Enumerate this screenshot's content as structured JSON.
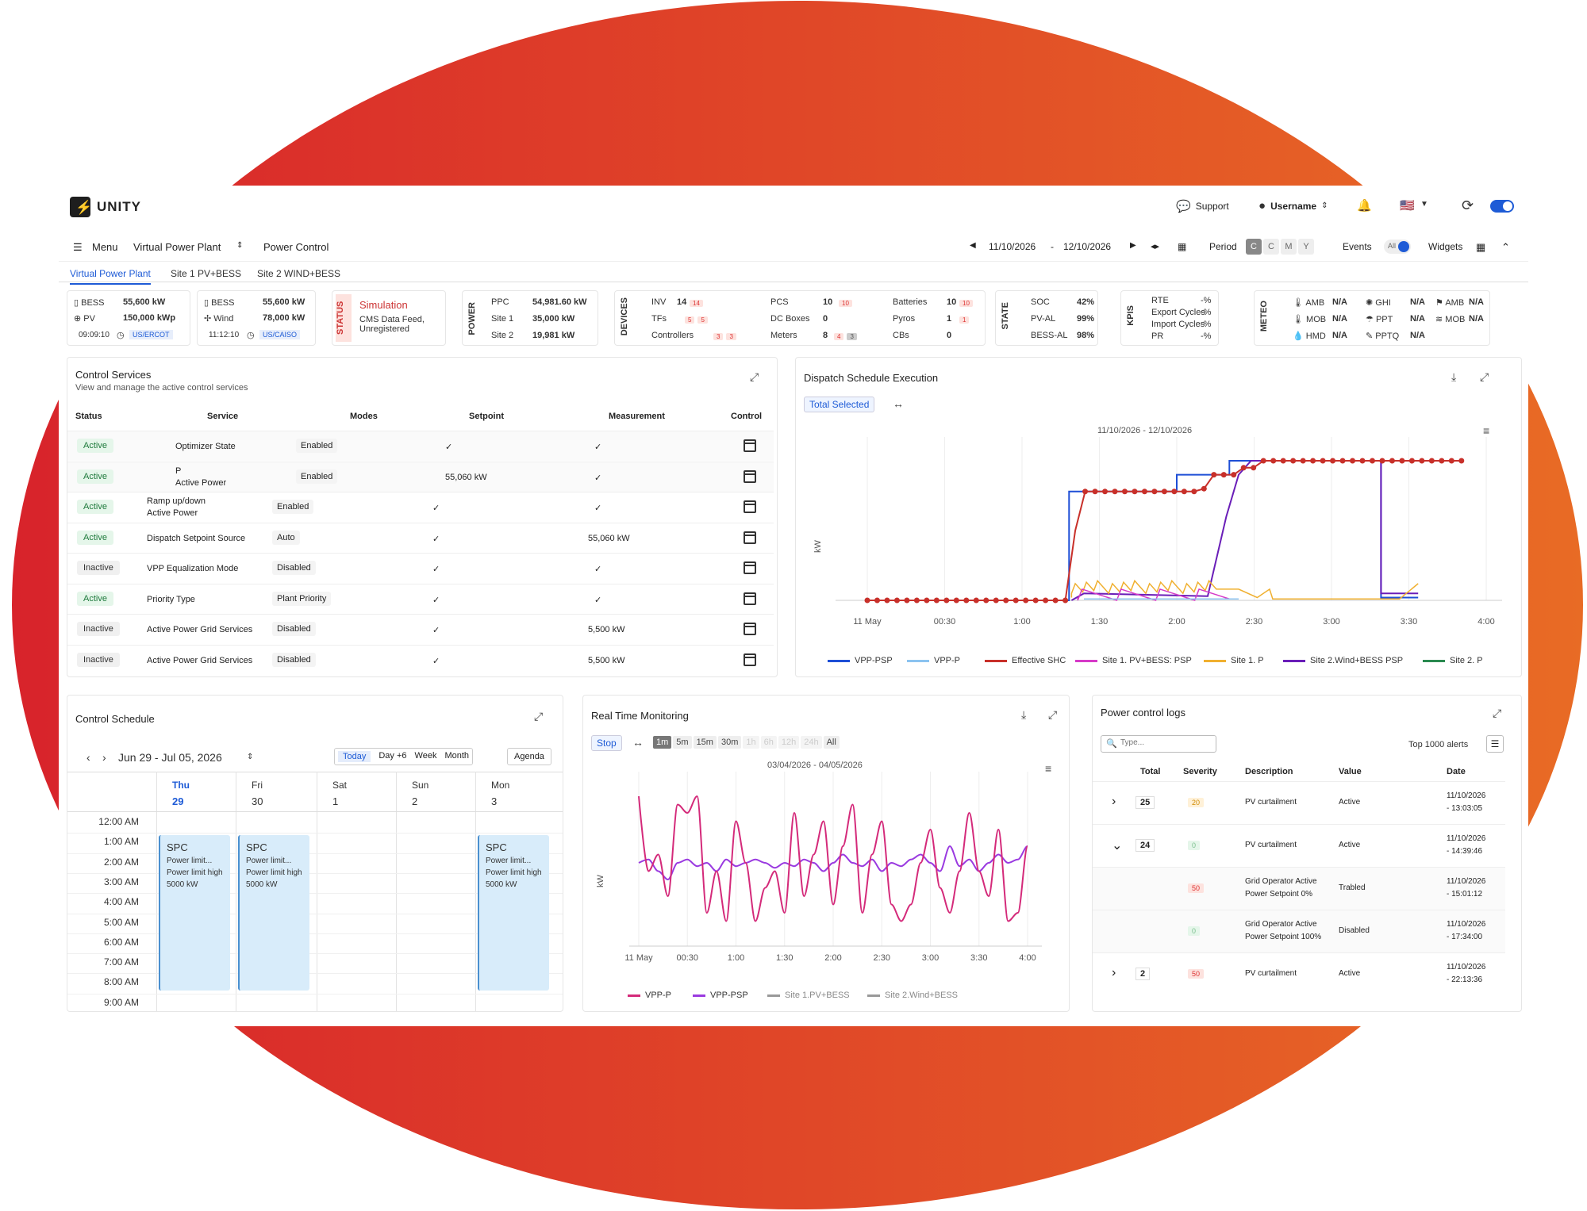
{
  "header": {
    "logo_text": "UNITY",
    "support": "Support",
    "username": "Username"
  },
  "nav": {
    "menu": "Menu",
    "plant": "Virtual Power Plant",
    "page": "Power Control",
    "date_from": "11/10/2026",
    "date_sep": "-",
    "date_to": "12/10/2026",
    "period_label": "Period",
    "period_buttons": [
      "C",
      "C",
      "M",
      "Y"
    ],
    "events_label": "Events",
    "events_toggle": "All",
    "widgets_label": "Widgets"
  },
  "tabs": [
    "Virtual Power Plant",
    "Site 1 PV+BESS",
    "Site 2 WIND+BESS"
  ],
  "summary": {
    "site1": {
      "l1": "BESS",
      "v1": "55,600 kW",
      "l2": "PV",
      "v2": "150,000 kWp",
      "time": "09:09:10",
      "tz": "US/ERCOT"
    },
    "site2": {
      "l1": "BESS",
      "v1": "55,600 kW",
      "l2": "Wind",
      "v2": "78,000 kW",
      "time": "11:12:10",
      "tz": "US/CAISO"
    },
    "status": {
      "label": "STATUS",
      "title": "Simulation",
      "sub": "CMS Data Feed, Unregistered"
    },
    "power": {
      "label": "POWER",
      "rows": [
        [
          "PPC",
          "54,981.60 kW"
        ],
        [
          "Site 1",
          "35,000 kW"
        ],
        [
          "Site 2",
          "19,981 kW"
        ]
      ]
    },
    "devices": {
      "label": "DEVICES",
      "inv": "INV",
      "inv_v": "14",
      "inv_c": "14",
      "tfs": "TFs",
      "tfs_c1": "5",
      "tfs_c2": "5",
      "ctrl": "Controllers",
      "ctrl_c1": "3",
      "ctrl_c2": "3",
      "pcs": "PCS",
      "pcs_v": "10",
      "pcs_c": "10",
      "dc": "DC Boxes",
      "dc_v": "0",
      "meters": "Meters",
      "meters_v": "8",
      "meters_c1": "4",
      "meters_c2": "3",
      "bat": "Batteries",
      "bat_v": "10",
      "bat_c": "10",
      "pyros": "Pyros",
      "pyros_v": "1",
      "pyros_c": "1",
      "cbs": "CBs",
      "cbs_v": "0"
    },
    "state": {
      "label": "STATE",
      "rows": [
        [
          "SOC",
          "42%"
        ],
        [
          "PV-AL",
          "99%"
        ],
        [
          "BESS-AL",
          "98%"
        ]
      ]
    },
    "kpis": {
      "label": "KPIS",
      "rows": [
        [
          "RTE",
          "-%"
        ],
        [
          "Export Cycles",
          "-%"
        ],
        [
          "Import Cycles",
          "-%"
        ],
        [
          "PR",
          "-%"
        ]
      ]
    },
    "meteo": {
      "label": "METEO",
      "rows": [
        [
          "AMB",
          "N/A",
          "GHI",
          "N/A",
          "AMB",
          "N/A"
        ],
        [
          "MOB",
          "N/A",
          "PPT",
          "N/A",
          "MOB",
          "N/A"
        ],
        [
          "HMD",
          "N/A",
          "PPTQ",
          "N/A",
          "",
          ""
        ]
      ]
    }
  },
  "control_services": {
    "title": "Control Services",
    "subtitle": "View and manage the active control services",
    "headers": [
      "Status",
      "Service",
      "Modes",
      "Setpoint",
      "Measurement",
      "Control"
    ],
    "rows": [
      {
        "status": "Active",
        "service": "Optimizer State",
        "service2": "",
        "mode": "Enabled",
        "setpoint": "✓",
        "measure": "✓"
      },
      {
        "status": "Active",
        "service": "P",
        "service2": "Active Power",
        "mode": "Enabled",
        "setpoint": "55,060  kW",
        "measure": "✓"
      },
      {
        "status": "Active",
        "service": "Ramp up/down",
        "service2": "Active Power",
        "mode": "Enabled",
        "setpoint": "✓",
        "measure": "✓"
      },
      {
        "status": "Active",
        "service": "Dispatch Setpoint Source",
        "service2": "",
        "mode": "Auto",
        "setpoint": "✓",
        "measure": "55,060  kW"
      },
      {
        "status": "Inactive",
        "service": "VPP Equalization Mode",
        "service2": "",
        "mode": "Disabled",
        "setpoint": "✓",
        "measure": "✓"
      },
      {
        "status": "Active",
        "service": "Priority Type",
        "service2": "",
        "mode": "Plant Priority",
        "setpoint": "✓",
        "measure": "✓"
      },
      {
        "status": "Inactive",
        "service": "Active Power Grid Services",
        "service2": "",
        "mode": "Disabled",
        "setpoint": "✓",
        "measure": "5,500  kW"
      },
      {
        "status": "Inactive",
        "service": "Active Power Grid Services",
        "service2": "",
        "mode": "Disabled",
        "setpoint": "✓",
        "measure": "5,500  kW"
      }
    ]
  },
  "dispatch": {
    "title": "Dispatch Schedule Execution",
    "selector": "Total Selected",
    "colors": {
      "vpp_psp": "#1e4fd6",
      "vpp_p": "#8cc3f0",
      "shc": "#c8302a",
      "site1_psp": "#d63ac8",
      "site1_p": "#f0b030",
      "site2_psp": "#6a1eb8",
      "site2_p": "#2a8a50"
    }
  },
  "chart_data": [
    {
      "type": "line",
      "title": "11/10/2026 - 12/10/2026",
      "xlabel": "",
      "ylabel": "kW",
      "x": [
        "11 May",
        "00:30",
        "1:00",
        "1:30",
        "2:00",
        "2:30",
        "3:00",
        "3:30",
        "4:00"
      ],
      "legend": [
        "VPP-PSP",
        "VPP-P",
        "Effective SHC",
        "Site 1. PV+BESS: PSP",
        "Site 1. P",
        "Site 2.Wind+BESS PSP",
        "Site 2. P"
      ],
      "series": [
        {
          "name": "VPP-PSP",
          "values": [
            0,
            0,
            0,
            0,
            0.6,
            0.8,
            1,
            1,
            0.1
          ]
        },
        {
          "name": "Effective SHC",
          "values": [
            0,
            0,
            0,
            0,
            0.6,
            0.78,
            1,
            1,
            1
          ]
        },
        {
          "name": "Site 1. P",
          "values": [
            0,
            0,
            0,
            0.1,
            0.1,
            0.1,
            0,
            0,
            0.1
          ]
        },
        {
          "name": "Site 2.Wind+BESS PSP",
          "values": [
            0,
            0,
            0,
            0.05,
            0.05,
            0.75,
            1,
            1,
            0.1
          ]
        }
      ]
    },
    {
      "type": "line",
      "title": "03/04/2026 - 04/05/2026",
      "xlabel": "",
      "ylabel": "kW",
      "x": [
        "11 May",
        "00:30",
        "1:00",
        "1:30",
        "2:00",
        "2:30",
        "3:00",
        "3:30",
        "4:00"
      ],
      "legend": [
        "VPP-P",
        "VPP-PSP",
        "Site 1.PV+BESS",
        "Site 2.Wind+BESS"
      ],
      "series": [
        {
          "name": "VPP-P",
          "values": [
            0.9,
            0.3,
            0.85,
            0.2,
            0.8,
            0.3,
            0.9,
            0.4,
            0.15
          ]
        },
        {
          "name": "VPP-PSP",
          "values": [
            0.55,
            0.48,
            0.52,
            0.45,
            0.5,
            0.47,
            0.55,
            0.5,
            0.6
          ]
        }
      ]
    }
  ],
  "rtm": {
    "title": "Real Time Monitoring",
    "stop": "Stop",
    "ranges": [
      "1m",
      "5m",
      "15m",
      "30m",
      "1h",
      "6h",
      "12h",
      "24h",
      "All"
    ],
    "colors": {
      "vpp_p": "#d42a7a",
      "vpp_psp": "#9a3ae0",
      "grey": "#999999"
    }
  },
  "schedule": {
    "title": "Control Schedule",
    "range": "Jun 29 - Jul 05, 2026",
    "views": [
      "Today",
      "Day +6",
      "Week",
      "Month"
    ],
    "agenda": "Agenda",
    "days": [
      [
        "Thu",
        "29"
      ],
      [
        "Fri",
        "30"
      ],
      [
        "Sat",
        "1"
      ],
      [
        "Sun",
        "2"
      ],
      [
        "Mon",
        "3"
      ]
    ],
    "times": [
      "12:00 AM",
      "1:00 AM",
      "2:00 AM",
      "3:00 AM",
      "4:00 AM",
      "5:00 AM",
      "6:00 AM",
      "7:00 AM",
      "8:00 AM",
      "9:00 AM"
    ],
    "event": {
      "title": "SPC",
      "l1": "Power limit...",
      "l2": "Power limit high",
      "l3": "5000 kW"
    }
  },
  "logs": {
    "title": "Power control logs",
    "search_placeholder": "Type...",
    "top": "Top 1000 alerts",
    "headers": [
      "Total",
      "Severity",
      "Description",
      "Value",
      "Date"
    ],
    "rows": [
      {
        "exp": "›",
        "total": "25",
        "sev": "20",
        "desc": "PV curtailment",
        "desc2": "",
        "value": "Active",
        "date": "11/10/2026",
        "time": "- 13:03:05"
      },
      {
        "exp": "⌄",
        "total": "24",
        "sev": "0",
        "desc": "PV curtailment",
        "desc2": "",
        "value": "Active",
        "date": "11/10/2026",
        "time": "- 14:39:46"
      },
      {
        "exp": "",
        "total": "",
        "sev": "50",
        "desc": "Grid Operator Active",
        "desc2": "Power Setpoint 0%",
        "value": "Trabled",
        "date": "11/10/2026",
        "time": "- 15:01:12"
      },
      {
        "exp": "",
        "total": "",
        "sev": "0",
        "desc": "Grid Operator Active",
        "desc2": "Power Setpoint 100%",
        "value": "Disabled",
        "date": "11/10/2026",
        "time": "- 17:34:00"
      },
      {
        "exp": "›",
        "total": "2",
        "sev": "50",
        "desc": "PV curtailment",
        "desc2": "",
        "value": "Active",
        "date": "11/10/2026",
        "time": "- 22:13:36"
      }
    ]
  }
}
